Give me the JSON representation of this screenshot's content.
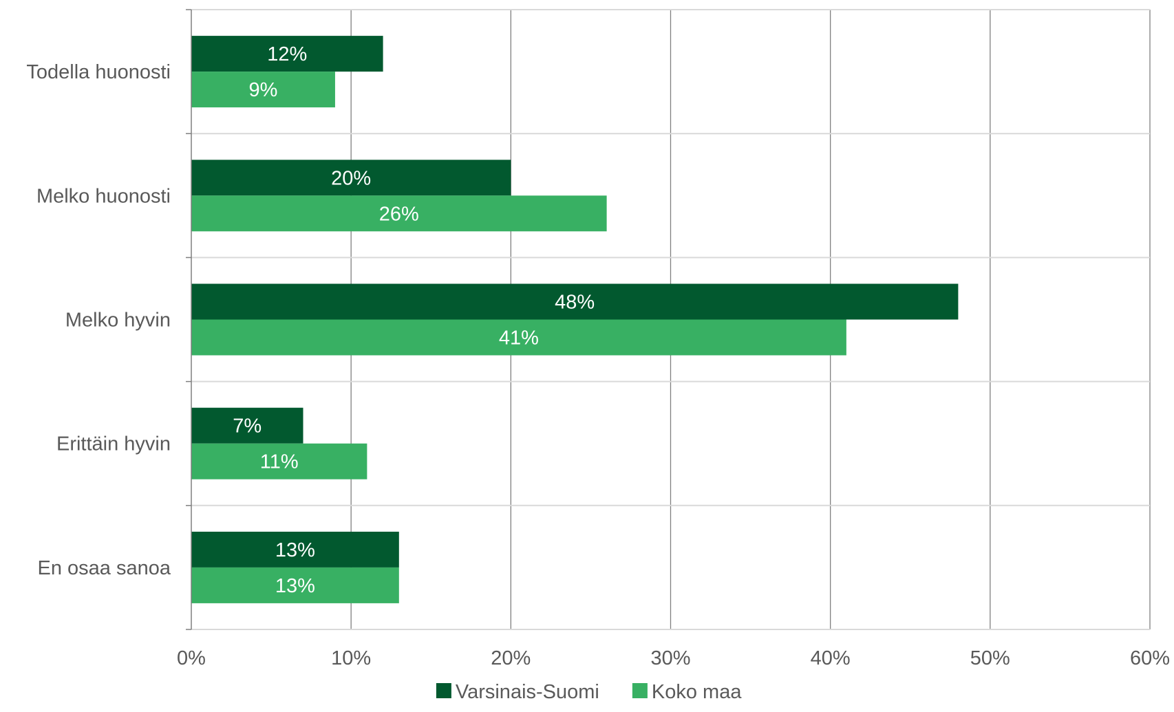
{
  "chart_data": {
    "type": "bar",
    "orientation": "horizontal",
    "title": "",
    "xlabel": "",
    "ylabel": "",
    "categories": [
      "Todella huonosti",
      "Melko huonosti",
      "Melko hyvin",
      "Erittäin hyvin",
      "En osaa sanoa"
    ],
    "series": [
      {
        "name": "Varsinais-Suomi",
        "color": "#02592F",
        "values": [
          12,
          20,
          48,
          7,
          13
        ],
        "labels": [
          "12%",
          "20%",
          "48%",
          "7%",
          "13%"
        ]
      },
      {
        "name": "Koko maa",
        "color": "#38B063",
        "values": [
          9,
          26,
          41,
          11,
          13
        ],
        "labels": [
          "9%",
          "26%",
          "41%",
          "11%",
          "13%"
        ]
      }
    ],
    "xlim": [
      0,
      60
    ],
    "xticks": [
      0,
      10,
      20,
      30,
      40,
      50,
      60
    ],
    "xtick_labels": [
      "0%",
      "10%",
      "20%",
      "30%",
      "40%",
      "50%",
      "60%"
    ],
    "grid": true,
    "legend_position": "bottom-center"
  }
}
